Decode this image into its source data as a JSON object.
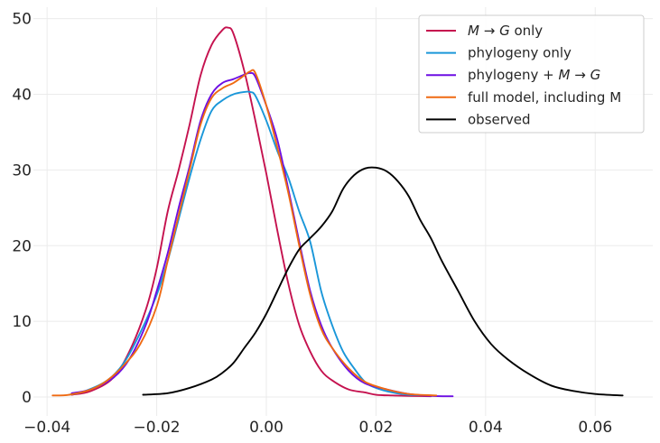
{
  "chart_data": {
    "type": "line",
    "title": "",
    "xlabel": "",
    "ylabel": "",
    "xlim": [
      -0.0425,
      0.0705
    ],
    "ylim": [
      -2.5,
      51.5
    ],
    "xticks": [
      -0.04,
      -0.02,
      0.0,
      0.02,
      0.04,
      0.06
    ],
    "xtick_labels": [
      "−0.04",
      "−0.02",
      "0.00",
      "0.02",
      "0.04",
      "0.06"
    ],
    "yticks": [
      0,
      10,
      20,
      30,
      40,
      50
    ],
    "ytick_labels": [
      "0",
      "10",
      "20",
      "30",
      "40",
      "50"
    ],
    "grid": true,
    "legend_position": "top-right",
    "series": [
      {
        "name": "M→G only",
        "name_parts": [
          {
            "text": "M",
            "italic": true
          },
          {
            "text": " → ",
            "italic": false
          },
          {
            "text": "G",
            "italic": true
          },
          {
            "text": " only",
            "italic": false
          }
        ],
        "color": "#c5124f",
        "x": [
          -0.0355,
          -0.032,
          -0.028,
          -0.025,
          -0.022,
          -0.02,
          -0.018,
          -0.016,
          -0.014,
          -0.012,
          -0.01,
          -0.008,
          -0.007,
          -0.006,
          -0.004,
          -0.002,
          0.0,
          0.002,
          0.004,
          0.006,
          0.008,
          0.01,
          0.012,
          0.015,
          0.018,
          0.02,
          0.023,
          0.026,
          0.03
        ],
        "y": [
          0.3,
          0.8,
          2.5,
          6.0,
          11.5,
          17.0,
          24.5,
          30.0,
          36.0,
          42.5,
          46.5,
          48.5,
          48.8,
          48.0,
          43.0,
          36.5,
          29.5,
          22.0,
          15.0,
          9.5,
          6.0,
          3.5,
          2.2,
          1.0,
          0.6,
          0.3,
          0.2,
          0.15,
          0.1
        ]
      },
      {
        "name": "phylogeny only",
        "name_parts": [
          {
            "text": "phylogeny only",
            "italic": false
          }
        ],
        "color": "#1a97d9",
        "x": [
          -0.036,
          -0.033,
          -0.029,
          -0.026,
          -0.023,
          -0.02,
          -0.018,
          -0.016,
          -0.014,
          -0.012,
          -0.01,
          -0.008,
          -0.006,
          -0.004,
          -0.003,
          -0.002,
          0.0,
          0.002,
          0.004,
          0.006,
          0.008,
          0.01,
          0.012,
          0.014,
          0.016,
          0.018,
          0.02,
          0.023,
          0.026,
          0.03
        ],
        "y": [
          0.3,
          0.8,
          2.2,
          4.5,
          8.5,
          13.5,
          18.0,
          23.5,
          29.0,
          34.0,
          37.8,
          39.2,
          40.0,
          40.3,
          40.3,
          39.8,
          36.5,
          32.5,
          29.0,
          24.5,
          20.5,
          14.0,
          9.5,
          6.0,
          3.8,
          2.0,
          1.2,
          0.6,
          0.3,
          0.2
        ]
      },
      {
        "name": "phylogeny + M→G",
        "name_parts": [
          {
            "text": "phylogeny + ",
            "italic": false
          },
          {
            "text": "M",
            "italic": true
          },
          {
            "text": " → ",
            "italic": false
          },
          {
            "text": "G",
            "italic": true
          }
        ],
        "color": "#6d0ee3",
        "x": [
          -0.0355,
          -0.032,
          -0.028,
          -0.025,
          -0.022,
          -0.02,
          -0.018,
          -0.016,
          -0.014,
          -0.012,
          -0.01,
          -0.008,
          -0.006,
          -0.004,
          -0.003,
          -0.002,
          0.0,
          0.002,
          0.004,
          0.006,
          0.008,
          0.01,
          0.012,
          0.015,
          0.018,
          0.022,
          0.026,
          0.03,
          0.034
        ],
        "y": [
          0.5,
          1.0,
          2.5,
          5.0,
          9.5,
          14.0,
          19.0,
          25.0,
          30.5,
          36.5,
          40.0,
          41.5,
          42.0,
          42.6,
          42.8,
          42.3,
          38.5,
          34.0,
          27.5,
          20.5,
          14.0,
          9.5,
          6.5,
          3.5,
          1.8,
          1.0,
          0.4,
          0.15,
          0.1
        ]
      },
      {
        "name": "full model, including M",
        "name_parts": [
          {
            "text": "full model, including M",
            "italic": false
          }
        ],
        "color": "#ef6a12",
        "x": [
          -0.039,
          -0.036,
          -0.032,
          -0.029,
          -0.026,
          -0.023,
          -0.02,
          -0.018,
          -0.016,
          -0.014,
          -0.012,
          -0.01,
          -0.008,
          -0.006,
          -0.004,
          -0.003,
          -0.002,
          0.0,
          0.002,
          0.004,
          0.006,
          0.008,
          0.01,
          0.012,
          0.015,
          0.018,
          0.022,
          0.026,
          0.031
        ],
        "y": [
          0.2,
          0.3,
          1.0,
          2.2,
          4.2,
          7.0,
          12.0,
          18.0,
          24.0,
          30.0,
          36.0,
          39.5,
          40.8,
          41.5,
          42.5,
          43.0,
          42.8,
          38.5,
          33.0,
          27.0,
          20.0,
          13.5,
          9.0,
          6.5,
          3.8,
          2.0,
          1.0,
          0.4,
          0.2
        ]
      },
      {
        "name": "observed",
        "name_parts": [
          {
            "text": "observed",
            "italic": false
          }
        ],
        "color": "#000000",
        "x": [
          -0.0225,
          -0.018,
          -0.014,
          -0.01,
          -0.008,
          -0.006,
          -0.004,
          -0.002,
          0.0,
          0.002,
          0.004,
          0.006,
          0.008,
          0.01,
          0.012,
          0.014,
          0.016,
          0.018,
          0.02,
          0.022,
          0.024,
          0.026,
          0.028,
          0.03,
          0.032,
          0.035,
          0.038,
          0.041,
          0.044,
          0.048,
          0.052,
          0.056,
          0.06,
          0.065
        ],
        "y": [
          0.3,
          0.5,
          1.2,
          2.3,
          3.2,
          4.5,
          6.5,
          8.5,
          11.0,
          14.0,
          17.0,
          19.5,
          21.0,
          22.5,
          24.5,
          27.5,
          29.3,
          30.2,
          30.3,
          29.8,
          28.5,
          26.5,
          23.5,
          21.0,
          18.0,
          14.0,
          10.0,
          7.0,
          5.0,
          3.0,
          1.5,
          0.8,
          0.4,
          0.2
        ]
      }
    ]
  }
}
